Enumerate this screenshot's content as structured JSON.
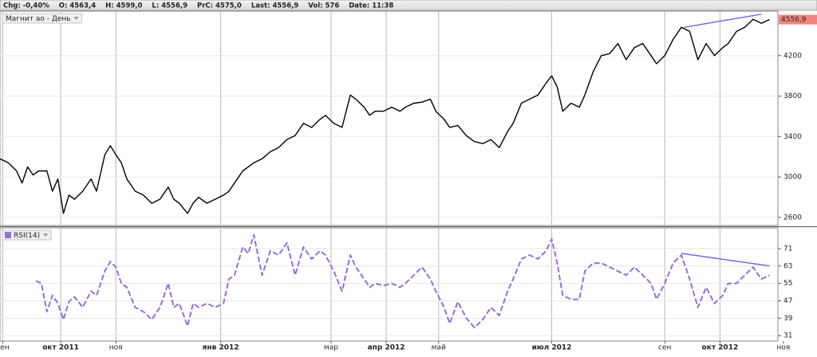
{
  "header": {
    "items": [
      "Chg: -0,40%",
      "O: 4563,4",
      "H: 4599,0",
      "L: 4556,9",
      "PrC: 4575,0",
      "Last: 4556,9",
      "Vol: 576",
      "Date: 11:38"
    ]
  },
  "chart_data": [
    {
      "type": "line",
      "grid": true,
      "x": [
        0,
        3,
        6,
        8,
        10,
        12,
        14,
        17,
        19,
        21,
        23,
        25,
        27,
        30,
        33,
        35,
        38,
        40,
        42,
        44,
        46,
        49,
        52,
        55,
        58,
        61,
        63,
        65,
        68,
        70,
        72,
        75,
        78,
        81,
        83,
        85,
        88,
        90,
        92,
        95,
        98,
        101,
        104,
        107,
        110,
        113,
        116,
        118,
        121,
        124,
        127,
        129,
        132,
        134,
        136,
        139,
        142,
        145,
        147,
        150,
        153,
        156,
        158,
        161,
        163,
        166,
        169,
        172,
        175,
        178,
        181,
        184,
        186,
        189,
        192,
        195,
        198,
        200,
        202,
        204,
        207,
        210,
        212,
        215,
        218,
        221,
        224,
        227,
        230,
        233,
        236,
        238,
        241,
        244,
        247,
        250,
        253,
        256,
        259,
        262,
        264,
        267,
        270,
        273,
        276,
        279
      ],
      "series": [
        {
          "name": "Магнит ао - День",
          "color": "#000000",
          "values": [
            3180,
            3140,
            3060,
            2940,
            3100,
            3020,
            3060,
            3060,
            2860,
            2980,
            2640,
            2820,
            2780,
            2860,
            2980,
            2860,
            3220,
            3310,
            3220,
            3140,
            2980,
            2860,
            2820,
            2740,
            2780,
            2900,
            2780,
            2740,
            2640,
            2740,
            2800,
            2740,
            2780,
            2820,
            2860,
            2940,
            3060,
            3100,
            3140,
            3180,
            3250,
            3290,
            3370,
            3410,
            3530,
            3490,
            3570,
            3610,
            3530,
            3490,
            3810,
            3770,
            3690,
            3610,
            3650,
            3650,
            3690,
            3650,
            3690,
            3730,
            3740,
            3770,
            3650,
            3570,
            3490,
            3510,
            3410,
            3350,
            3330,
            3370,
            3290,
            3450,
            3530,
            3730,
            3770,
            3810,
            3930,
            4000,
            3890,
            3650,
            3730,
            3690,
            3810,
            4040,
            4200,
            4220,
            4320,
            4160,
            4280,
            4320,
            4200,
            4120,
            4200,
            4360,
            4480,
            4440,
            4160,
            4320,
            4200,
            4280,
            4320,
            4440,
            4480,
            4560,
            4520,
            4556.9
          ]
        }
      ],
      "last_value": {
        "value": 4556.9,
        "label": "4556,9"
      },
      "trendline": {
        "x": [
          248,
          276
        ],
        "y": [
          4480,
          4610
        ],
        "color": "#6b6bf0"
      },
      "xlim": [
        0,
        282
      ],
      "ylim": [
        2520,
        4640
      ],
      "yticks": [
        2600,
        3000,
        3400,
        3800,
        4200
      ]
    },
    {
      "type": "line",
      "grid": true,
      "dashed": true,
      "x": [
        13,
        15,
        17,
        19,
        21,
        23,
        25,
        27,
        30,
        33,
        35,
        38,
        40,
        42,
        44,
        46,
        49,
        52,
        55,
        58,
        61,
        63,
        65,
        68,
        70,
        72,
        75,
        78,
        81,
        83,
        85,
        88,
        90,
        92,
        95,
        98,
        101,
        104,
        107,
        110,
        113,
        116,
        118,
        121,
        124,
        127,
        129,
        132,
        134,
        136,
        139,
        142,
        145,
        147,
        150,
        153,
        156,
        158,
        161,
        163,
        166,
        169,
        172,
        175,
        178,
        181,
        184,
        186,
        189,
        192,
        195,
        198,
        200,
        202,
        204,
        207,
        210,
        212,
        215,
        218,
        221,
        224,
        227,
        230,
        233,
        236,
        238,
        241,
        244,
        247,
        250,
        253,
        256,
        259,
        262,
        264,
        267,
        270,
        273,
        276,
        279
      ],
      "series": [
        {
          "name": "RSI(14)",
          "color": "#9370db",
          "values": [
            56.2,
            55,
            42,
            49.5,
            45.8,
            38.4,
            46.6,
            48.8,
            44,
            51.4,
            49.5,
            60.6,
            65,
            62.5,
            55,
            53.2,
            44,
            42,
            38.4,
            44,
            55,
            44,
            45.8,
            35.4,
            45.8,
            44,
            45.8,
            44,
            45.8,
            57,
            58.8,
            71.7,
            68.8,
            77.3,
            58.8,
            70,
            68,
            73.6,
            58.8,
            71.7,
            66.2,
            70,
            68,
            60.6,
            51.4,
            68,
            62.5,
            57,
            53.2,
            55,
            54,
            55,
            53.2,
            55,
            58.8,
            62.5,
            57,
            51.4,
            44,
            36.6,
            46.6,
            39.1,
            34.7,
            38.4,
            44,
            40.3,
            51.4,
            57,
            66.2,
            68,
            66.2,
            70,
            75.4,
            64.3,
            49.5,
            47.7,
            47.7,
            60.6,
            64.3,
            64.3,
            62.5,
            60.6,
            58.8,
            62.5,
            58.8,
            55,
            47.7,
            55,
            64.3,
            68,
            57,
            44,
            53.2,
            45.8,
            49.5,
            55,
            55,
            58.8,
            62.5,
            57,
            58.8
          ]
        }
      ],
      "trendline": {
        "x": [
          247,
          279
        ],
        "y": [
          68.8,
          63
        ],
        "color": "#6b6bf0"
      },
      "xlim": [
        0,
        282
      ],
      "ylim": [
        28.5,
        80.5
      ],
      "yticks": [
        31,
        39,
        47,
        55,
        63,
        71
      ],
      "xticks": [
        {
          "value": 1,
          "label": "сен"
        },
        {
          "value": 22,
          "label": "окт 2011"
        },
        {
          "value": 42,
          "label": "ноя"
        },
        {
          "value": 80,
          "label": "янв 2012"
        },
        {
          "value": 120,
          "label": "мар"
        },
        {
          "value": 140,
          "label": "апр 2012"
        },
        {
          "value": 159,
          "label": "май"
        },
        {
          "value": 200,
          "label": "июл 2012"
        },
        {
          "value": 241,
          "label": "сен"
        },
        {
          "value": 261,
          "label": "окт 2012"
        },
        {
          "value": 284,
          "label": "ноя"
        }
      ]
    }
  ]
}
